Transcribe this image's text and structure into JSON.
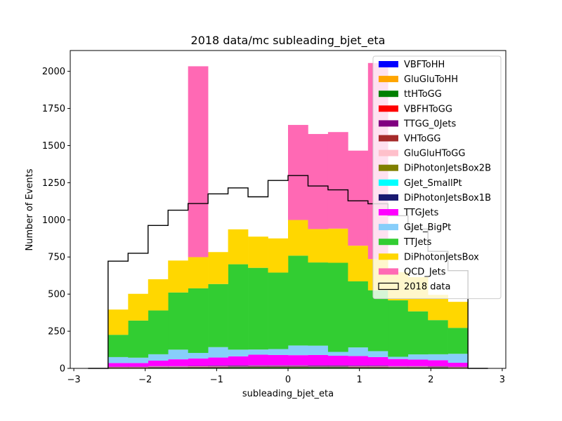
{
  "chart_data": {
    "type": "bar",
    "subtype": "stacked-histogram",
    "title": "2018 data/mc subleading_bjet_eta",
    "xlabel": "subleading_bjet_eta",
    "ylabel": "Number of Events",
    "xlim": [
      -3.05,
      3.05
    ],
    "ylim": [
      0,
      2140
    ],
    "xticks": [
      -3,
      -2,
      -1,
      0,
      1,
      2,
      3
    ],
    "xtick_labels": [
      "−3",
      "−2",
      "−1",
      "0",
      "1",
      "2",
      "3"
    ],
    "yticks": [
      0,
      250,
      500,
      750,
      1000,
      1250,
      1500,
      1750,
      2000
    ],
    "ytick_labels": [
      "0",
      "250",
      "500",
      "750",
      "1000",
      "1250",
      "1500",
      "1750",
      "2000"
    ],
    "legend_position": "upper right",
    "bin_edges": [
      -2.8,
      -2.52,
      -2.24,
      -1.96,
      -1.68,
      -1.4,
      -1.12,
      -0.84,
      -0.56,
      -0.28,
      0.0,
      0.28,
      0.56,
      0.84,
      1.12,
      1.4,
      1.68,
      1.96,
      2.24,
      2.52,
      2.8
    ],
    "series": [
      {
        "name": "VBFToHH",
        "color": "#0000ff",
        "values": [
          0,
          1,
          1,
          1,
          1,
          1,
          1,
          1,
          1,
          1,
          1,
          1,
          1,
          1,
          1,
          1,
          1,
          1,
          1,
          0
        ]
      },
      {
        "name": "GluGluToHH",
        "color": "#ffa500",
        "values": [
          0,
          1,
          1,
          1,
          1,
          1,
          1,
          1,
          1,
          1,
          1,
          1,
          1,
          1,
          1,
          1,
          1,
          1,
          1,
          0
        ]
      },
      {
        "name": "ttHToGG",
        "color": "#008000",
        "values": [
          0,
          2,
          2,
          3,
          3,
          4,
          4,
          5,
          6,
          6,
          6,
          5,
          5,
          4,
          4,
          3,
          3,
          3,
          2,
          0
        ]
      },
      {
        "name": "VBFHToGG",
        "color": "#ff0000",
        "values": [
          0,
          1,
          1,
          1,
          1,
          1,
          1,
          1,
          1,
          1,
          1,
          1,
          1,
          1,
          1,
          1,
          1,
          1,
          1,
          0
        ]
      },
      {
        "name": "TTGG_0Jets",
        "color": "#800080",
        "values": [
          0,
          2,
          2,
          3,
          3,
          3,
          4,
          4,
          4,
          4,
          4,
          4,
          4,
          4,
          4,
          3,
          3,
          3,
          2,
          0
        ]
      },
      {
        "name": "VHToGG",
        "color": "#a52a2a",
        "values": [
          0,
          1,
          1,
          1,
          1,
          1,
          1,
          1,
          1,
          1,
          1,
          1,
          1,
          1,
          1,
          1,
          1,
          1,
          1,
          0
        ]
      },
      {
        "name": "GluGluHToGG",
        "color": "#ffc0cb",
        "values": [
          0,
          1,
          1,
          2,
          2,
          2,
          2,
          2,
          2,
          2,
          2,
          2,
          2,
          2,
          2,
          2,
          2,
          1,
          1,
          0
        ]
      },
      {
        "name": "DiPhotonJetsBox2B",
        "color": "#808000",
        "values": [
          0,
          1,
          1,
          1,
          1,
          1,
          1,
          1,
          1,
          1,
          1,
          1,
          1,
          1,
          1,
          1,
          1,
          1,
          1,
          0
        ]
      },
      {
        "name": "GJet_SmallPt",
        "color": "#00ffff",
        "values": [
          0,
          0,
          0,
          0,
          0,
          0,
          0,
          0,
          0,
          0,
          0,
          0,
          0,
          0,
          0,
          0,
          0,
          0,
          0,
          0
        ]
      },
      {
        "name": "DiPhotonJetsBox1B",
        "color": "#191970",
        "values": [
          0,
          1,
          1,
          2,
          2,
          2,
          3,
          3,
          3,
          3,
          3,
          3,
          3,
          3,
          3,
          2,
          2,
          2,
          1,
          0
        ]
      },
      {
        "name": "TTGJets",
        "color": "#ff00ff",
        "values": [
          0,
          25,
          25,
          37,
          46,
          50,
          55,
          62,
          72,
          70,
          69,
          71,
          66,
          65,
          58,
          48,
          44,
          41,
          27,
          0
        ]
      },
      {
        "name": "GJet_BigPt",
        "color": "#87cefa",
        "values": [
          0,
          40,
          36,
          43,
          65,
          38,
          70,
          45,
          35,
          40,
          65,
          63,
          26,
          58,
          40,
          15,
          35,
          40,
          60,
          0
        ]
      },
      {
        "name": "TTJets",
        "color": "#32cd32",
        "values": [
          0,
          150,
          250,
          295,
          385,
          435,
          425,
          575,
          550,
          515,
          605,
          560,
          600,
          445,
          410,
          380,
          290,
          230,
          175,
          0
        ]
      },
      {
        "name": "DiPhotonJetsBox",
        "color": "#ffd700",
        "values": [
          0,
          170,
          180,
          210,
          215,
          210,
          215,
          235,
          210,
          230,
          240,
          225,
          230,
          240,
          210,
          190,
          230,
          170,
          175,
          0
        ]
      },
      {
        "name": "QCD_Jets",
        "color": "#ff69b4",
        "values": [
          0,
          0,
          0,
          0,
          0,
          1285,
          0,
          0,
          0,
          0,
          640,
          640,
          650,
          640,
          1320,
          0,
          0,
          0,
          0,
          0
        ]
      }
    ],
    "data_series": {
      "name": "2018 data",
      "color": "#000000",
      "values": [
        0,
        722,
        775,
        962,
        1065,
        1110,
        1175,
        1215,
        1155,
        1265,
        1298,
        1228,
        1202,
        1128,
        1108,
        1028,
        938,
        788,
        658,
        0
      ]
    }
  }
}
